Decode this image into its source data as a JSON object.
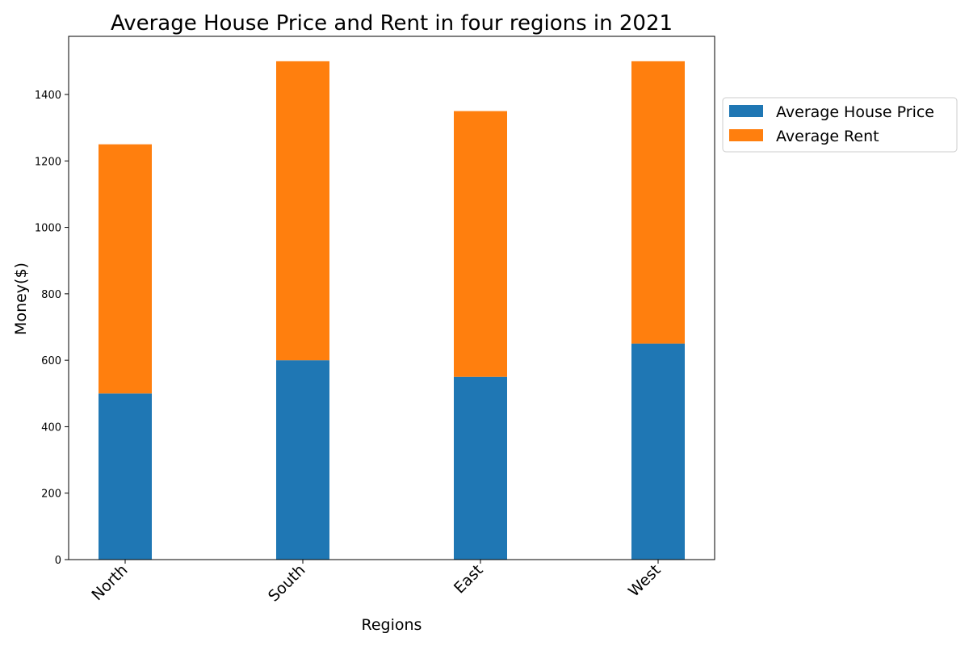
{
  "chart_data": {
    "type": "bar",
    "stacked": true,
    "title": "Average House Price and Rent in four regions in 2021",
    "xlabel": "Regions",
    "ylabel": "Money($)",
    "categories": [
      "North",
      "South",
      "East",
      "West"
    ],
    "series": [
      {
        "name": "Average House Price",
        "values": [
          500,
          600,
          550,
          650
        ],
        "color": "#1f77b4"
      },
      {
        "name": "Average Rent",
        "values": [
          750,
          900,
          800,
          850
        ],
        "color": "#ff7f0e"
      }
    ],
    "ylim": [
      0,
      1575
    ],
    "yticks": [
      0,
      200,
      400,
      600,
      800,
      1000,
      1200,
      1400
    ],
    "grid": false,
    "legend_position": "right, outside plot"
  }
}
